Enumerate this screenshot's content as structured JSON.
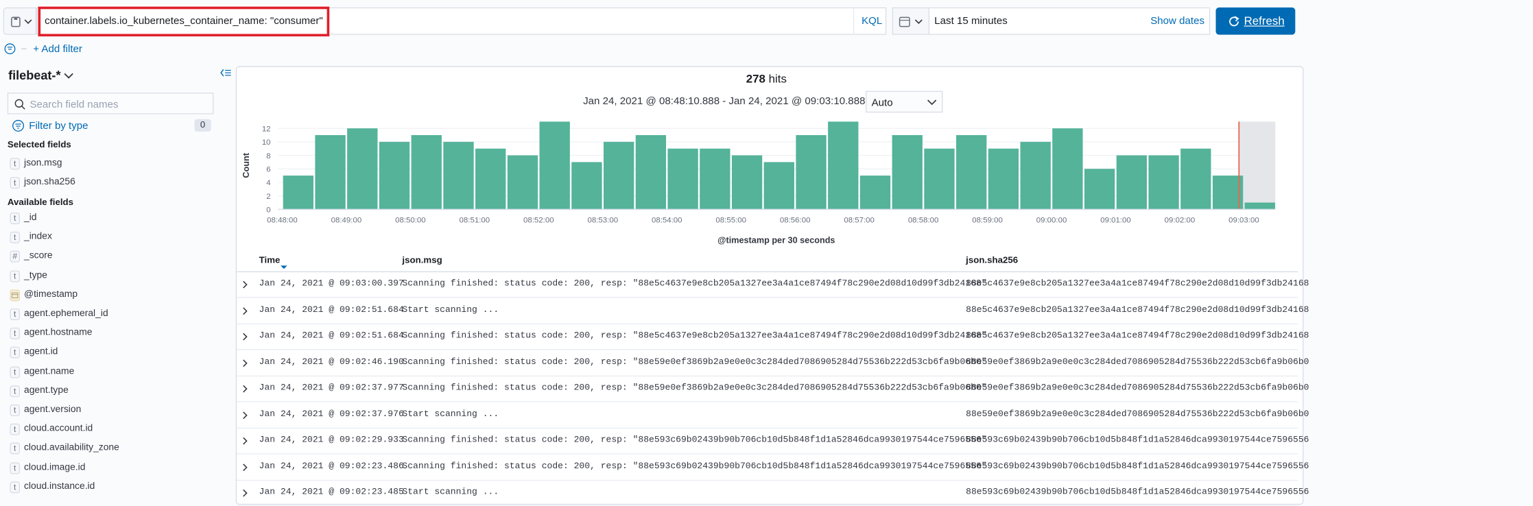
{
  "query": {
    "text": "container.labels.io_kubernetes_container_name: \"consumer\"",
    "language": "KQL"
  },
  "time_picker": {
    "range": "Last 15 minutes",
    "show_dates": "Show dates",
    "refresh": "Refresh"
  },
  "filter_bar": {
    "add_filter": "+ Add filter"
  },
  "sidebar": {
    "index_pattern": "filebeat-*",
    "search_placeholder": "Search field names",
    "filter_by_type": "Filter by type",
    "filter_count": "0",
    "selected_title": "Selected fields",
    "selected_fields": [
      {
        "icon": "t",
        "name": "json.msg"
      },
      {
        "icon": "t",
        "name": "json.sha256"
      }
    ],
    "available_title": "Available fields",
    "available_fields": [
      {
        "icon": "t",
        "name": "_id"
      },
      {
        "icon": "t",
        "name": "_index"
      },
      {
        "icon": "#",
        "name": "_score"
      },
      {
        "icon": "t",
        "name": "_type"
      },
      {
        "name": "@timestamp"
      },
      {
        "icon": "t",
        "name": "agent.ephemeral_id"
      },
      {
        "icon": "t",
        "name": "agent.hostname"
      },
      {
        "icon": "t",
        "name": "agent.id"
      },
      {
        "icon": "t",
        "name": "agent.name"
      },
      {
        "icon": "t",
        "name": "agent.type"
      },
      {
        "icon": "t",
        "name": "agent.version"
      },
      {
        "icon": "t",
        "name": "cloud.account.id"
      },
      {
        "icon": "t",
        "name": "cloud.availability_zone"
      },
      {
        "icon": "t",
        "name": "cloud.image.id"
      },
      {
        "icon": "t",
        "name": "cloud.instance.id"
      }
    ]
  },
  "results": {
    "hits": "278",
    "hits_label": "hits",
    "date_range": "Jan 24, 2021 @ 08:48:10.888 - Jan 24, 2021 @ 09:03:10.888",
    "interval": "Auto"
  },
  "chart_data": {
    "type": "bar",
    "y_label": "Count",
    "x_label": "@timestamp per 30 seconds",
    "color": "#54b399",
    "grid": true,
    "categories": [
      "08:48:00",
      null,
      "08:49:00",
      null,
      "08:50:00",
      null,
      "08:51:00",
      null,
      "08:52:00",
      null,
      "08:53:00",
      null,
      "08:54:00",
      null,
      "08:55:00",
      null,
      "08:56:00",
      null,
      "08:57:00",
      null,
      "08:58:00",
      null,
      "08:59:00",
      null,
      "09:00:00",
      null,
      "09:01:00",
      null,
      "09:02:00",
      null,
      "09:03:00"
    ],
    "values": [
      5,
      11,
      12,
      10,
      11,
      10,
      9,
      8,
      13,
      7,
      10,
      11,
      9,
      9,
      8,
      7,
      11,
      13,
      5,
      11,
      9,
      11,
      9,
      10,
      12,
      6,
      8,
      8,
      9,
      5,
      1
    ],
    "ylim": [
      0,
      13
    ],
    "yticks": [
      0,
      2,
      4,
      6,
      8,
      10,
      12
    ]
  },
  "table": {
    "headers": [
      "Time",
      "json.msg",
      "json.sha256"
    ],
    "rows": [
      [
        "Jan 24, 2021 @ 09:03:00.397",
        "Scanning finished: status code: 200, resp: \"88e5c4637e9e8cb205a1327ee3a4a1ce87494f78c290e2d08d10d99f3db24168\"",
        "88e5c4637e9e8cb205a1327ee3a4a1ce87494f78c290e2d08d10d99f3db24168"
      ],
      [
        "Jan 24, 2021 @ 09:02:51.684",
        "Start scanning ...",
        "88e5c4637e9e8cb205a1327ee3a4a1ce87494f78c290e2d08d10d99f3db24168"
      ],
      [
        "Jan 24, 2021 @ 09:02:51.684",
        "Scanning finished: status code: 200, resp: \"88e5c4637e9e8cb205a1327ee3a4a1ce87494f78c290e2d08d10d99f3db24168\"",
        "88e5c4637e9e8cb205a1327ee3a4a1ce87494f78c290e2d08d10d99f3db24168"
      ],
      [
        "Jan 24, 2021 @ 09:02:46.190",
        "Scanning finished: status code: 200, resp: \"88e59e0ef3869b2a9e0e0c3c284ded7086905284d75536b222d53cb6fa9b06b0\"",
        "88e59e0ef3869b2a9e0e0c3c284ded7086905284d75536b222d53cb6fa9b06b0"
      ],
      [
        "Jan 24, 2021 @ 09:02:37.977",
        "Scanning finished: status code: 200, resp: \"88e59e0ef3869b2a9e0e0c3c284ded7086905284d75536b222d53cb6fa9b06b0\"",
        "88e59e0ef3869b2a9e0e0c3c284ded7086905284d75536b222d53cb6fa9b06b0"
      ],
      [
        "Jan 24, 2021 @ 09:02:37.976",
        "Start scanning ...",
        "88e59e0ef3869b2a9e0e0c3c284ded7086905284d75536b222d53cb6fa9b06b0"
      ],
      [
        "Jan 24, 2021 @ 09:02:29.933",
        "Scanning finished: status code: 200, resp: \"88e593c69b02439b90b706cb10d5b848f1d1a52846dca9930197544ce7596556\"",
        "88e593c69b02439b90b706cb10d5b848f1d1a52846dca9930197544ce7596556"
      ],
      [
        "Jan 24, 2021 @ 09:02:23.486",
        "Scanning finished: status code: 200, resp: \"88e593c69b02439b90b706cb10d5b848f1d1a52846dca9930197544ce7596556\"",
        "88e593c69b02439b90b706cb10d5b848f1d1a52846dca9930197544ce7596556"
      ],
      [
        "Jan 24, 2021 @ 09:02:23.485",
        "Start scanning ...",
        "88e593c69b02439b90b706cb10d5b848f1d1a52846dca9930197544ce7596556"
      ]
    ]
  }
}
